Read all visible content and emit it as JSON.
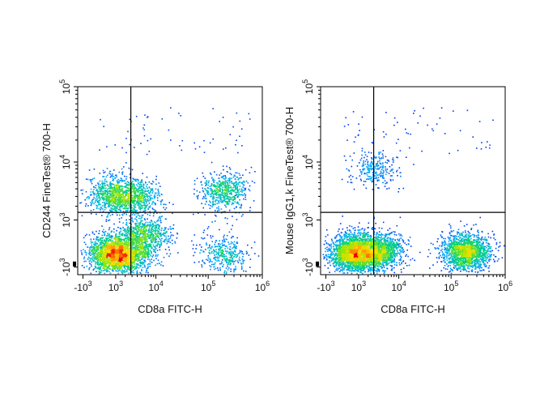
{
  "chart_data": [
    {
      "type": "scatter",
      "title": "",
      "xlabel": "CD8a FITC-H",
      "ylabel": "CD244 FineTest® 700-H",
      "x_scale": "biexponential",
      "y_scale": "biexponential",
      "x_ticks": [
        {
          "value": -1000,
          "label": "-10",
          "exp": "3"
        },
        {
          "value": 1000,
          "label": "10",
          "exp": "3"
        },
        {
          "value": 10000,
          "label": "10",
          "exp": "4"
        },
        {
          "value": 100000,
          "label": "10",
          "exp": "5"
        },
        {
          "value": 1000000,
          "label": "10",
          "exp": "6"
        }
      ],
      "y_ticks": [
        {
          "value": -1000,
          "label": "-10",
          "exp": "3"
        },
        {
          "value": 1000,
          "label": "10",
          "exp": "3"
        },
        {
          "value": 10000,
          "label": "10",
          "exp": "4"
        },
        {
          "value": 100000,
          "label": "10",
          "exp": "5"
        }
      ],
      "xlim": [
        -1500,
        1000000
      ],
      "ylim": [
        -1500,
        100000
      ],
      "gate_x": 2800,
      "gate_y": 1500,
      "populations": [
        {
          "x": 750,
          "y": -350,
          "weight": 0.3
        },
        {
          "x": 2500,
          "y": -350,
          "weight": 0.14
        },
        {
          "x": 190000,
          "y": -300,
          "weight": 0.07
        },
        {
          "x": 700,
          "y": 3200,
          "weight": 0.13
        },
        {
          "x": 3500,
          "y": 3000,
          "weight": 0.12
        },
        {
          "x": 200000,
          "y": 3800,
          "weight": 0.11
        },
        {
          "x": 6000,
          "y": 300,
          "weight": 0.13
        }
      ]
    },
    {
      "type": "scatter",
      "title": "",
      "xlabel": "CD8a FITC-H",
      "ylabel": "Mouse IgG1,k FineTest® 700-H",
      "x_scale": "biexponential",
      "y_scale": "biexponential",
      "x_ticks": [
        {
          "value": -1000,
          "label": "-10",
          "exp": "3"
        },
        {
          "value": 1000,
          "label": "10",
          "exp": "3"
        },
        {
          "value": 10000,
          "label": "10",
          "exp": "4"
        },
        {
          "value": 100000,
          "label": "10",
          "exp": "5"
        },
        {
          "value": 1000000,
          "label": "10",
          "exp": "6"
        }
      ],
      "y_ticks": [
        {
          "value": -1000,
          "label": "-10",
          "exp": "3"
        },
        {
          "value": 1000,
          "label": "10",
          "exp": "3"
        },
        {
          "value": 10000,
          "label": "10",
          "exp": "4"
        },
        {
          "value": 100000,
          "label": "10",
          "exp": "5"
        }
      ],
      "xlim": [
        -1500,
        1000000
      ],
      "ylim": [
        -1500,
        100000
      ],
      "gate_x": 2800,
      "gate_y": 1500,
      "populations": [
        {
          "x": 650,
          "y": -300,
          "weight": 0.4
        },
        {
          "x": 3500,
          "y": -250,
          "weight": 0.25
        },
        {
          "x": 190000,
          "y": -250,
          "weight": 0.3
        },
        {
          "x": 3000,
          "y": 8000,
          "weight": 0.05
        }
      ]
    }
  ]
}
